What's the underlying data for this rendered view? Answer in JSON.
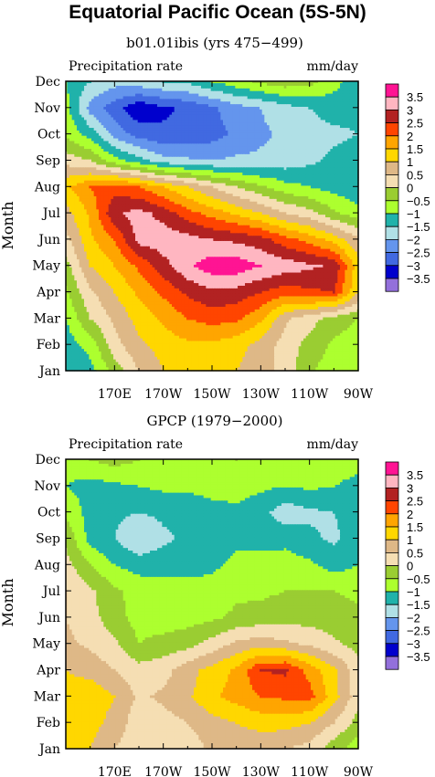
{
  "title": "Equatorial Pacific Ocean (5S-5N)",
  "colorbar_labels": [
    "3.5",
    "3",
    "2.5",
    "2",
    "1.5",
    "1",
    "0.5",
    "0",
    "−0.5",
    "−1",
    "−1.5",
    "−2",
    "−2.5",
    "−3",
    "−3.5"
  ],
  "colorbar_colors": [
    "#ff1493",
    "#ffb6c1",
    "#b22222",
    "#ff4500",
    "#ffa500",
    "#ffd700",
    "#deb887",
    "#f5deb3",
    "#9acd32",
    "#adff2f",
    "#20b2aa",
    "#b0e0e6",
    "#6495ed",
    "#4169e1",
    "#0000cd",
    "#9370db"
  ],
  "chart_data": [
    {
      "type": "heatmap",
      "subtitle": "b01.01ibis (yrs 475−499)",
      "left_label": "Precipitation rate",
      "right_label": "mm/day",
      "ylabel": "Month",
      "xticks": [
        "170E",
        "170W",
        "150W",
        "130W",
        "110W",
        "90W"
      ],
      "yticks": [
        "Jan",
        "Feb",
        "Mar",
        "Apr",
        "May",
        "Jun",
        "Jul",
        "Aug",
        "Sep",
        "Oct",
        "Nov",
        "Dec"
      ],
      "x": [
        150,
        160,
        170,
        180,
        190,
        200,
        210,
        220,
        230,
        240,
        250,
        260,
        270
      ],
      "levels": [
        -4,
        -3.5,
        -3,
        -2.5,
        -2,
        -1.5,
        -1,
        -0.5,
        0,
        0.5,
        1,
        1.5,
        2,
        2.5,
        3,
        3.5,
        4
      ],
      "values": [
        [
          -1.5,
          -1.2,
          -0.3,
          0.5,
          1.0,
          1.2,
          1.2,
          1.0,
          0.7,
          0.3,
          -0.4,
          -0.8,
          -1.0
        ],
        [
          -1.3,
          -0.8,
          0.3,
          0.9,
          1.2,
          1.4,
          1.4,
          1.2,
          0.8,
          0.3,
          -0.2,
          -0.6,
          -0.8
        ],
        [
          -1.0,
          0.0,
          0.6,
          1.2,
          1.6,
          2.0,
          2.2,
          2.1,
          1.6,
          0.6,
          0.2,
          -0.2,
          -0.5
        ],
        [
          -0.6,
          0.4,
          1.0,
          1.6,
          2.1,
          2.6,
          2.9,
          2.8,
          2.5,
          2.2,
          2.4,
          2.5,
          1.0
        ],
        [
          -0.2,
          1.0,
          1.5,
          2.1,
          2.8,
          3.4,
          3.8,
          3.8,
          3.5,
          3.3,
          3.1,
          2.9,
          1.2
        ],
        [
          0.3,
          1.4,
          2.0,
          3.2,
          3.3,
          3.2,
          3.0,
          2.9,
          2.7,
          2.2,
          1.8,
          1.3,
          0.6
        ],
        [
          0.8,
          1.6,
          2.9,
          3.2,
          2.8,
          2.2,
          1.8,
          1.4,
          1.0,
          0.5,
          0.2,
          -0.4,
          -0.8
        ],
        [
          1.4,
          2.0,
          2.3,
          2.0,
          1.5,
          1.0,
          0.5,
          0.0,
          -0.4,
          -0.8,
          -1.0,
          -1.2,
          -1.4
        ],
        [
          0.3,
          0.0,
          -0.8,
          -1.3,
          -1.8,
          -1.9,
          -2.0,
          -1.9,
          -1.9,
          -1.8,
          -1.6,
          -1.4,
          -1.2
        ],
        [
          -0.6,
          -1.2,
          -2.2,
          -2.7,
          -2.9,
          -2.9,
          -2.7,
          -2.4,
          -2.1,
          -1.9,
          -1.7,
          -1.6,
          -1.5
        ],
        [
          -0.8,
          -2.2,
          -2.8,
          -3.4,
          -3.1,
          -2.9,
          -2.6,
          -2.2,
          -2.0,
          -1.7,
          -1.5,
          -1.3,
          -1.4
        ],
        [
          -1.0,
          -1.5,
          -1.8,
          -1.7,
          -1.5,
          -1.4,
          -1.0,
          -0.7,
          -0.4,
          -0.2,
          -0.3,
          -0.8,
          -1.4
        ]
      ]
    },
    {
      "type": "heatmap",
      "subtitle": "GPCP (1979−2000)",
      "left_label": "Precipitation rate",
      "right_label": "mm/day",
      "ylabel": "Month",
      "xticks": [
        "170E",
        "170W",
        "150W",
        "130W",
        "110W",
        "90W"
      ],
      "yticks": [
        "Jan",
        "Feb",
        "Mar",
        "Apr",
        "May",
        "Jun",
        "Jul",
        "Aug",
        "Sep",
        "Oct",
        "Nov",
        "Dec"
      ],
      "x": [
        150,
        160,
        170,
        180,
        190,
        200,
        210,
        220,
        230,
        240,
        250,
        260,
        270
      ],
      "levels": [
        -4,
        -3.5,
        -3,
        -2.5,
        -2,
        -1.5,
        -1,
        -0.5,
        0,
        0.5,
        1,
        1.5,
        2,
        2.5,
        3,
        3.5,
        4
      ],
      "values": [
        [
          1.3,
          1.0,
          0.5,
          0.2,
          0.1,
          0.2,
          0.6,
          0.7,
          0.6,
          0.5,
          0.3,
          -0.3,
          -0.8
        ],
        [
          1.4,
          1.2,
          0.8,
          0.2,
          0.3,
          0.5,
          0.8,
          1.0,
          1.2,
          1.2,
          1.0,
          0.5,
          -0.2
        ],
        [
          1.2,
          1.4,
          1.0,
          0.4,
          0.6,
          0.9,
          1.4,
          1.7,
          2.0,
          2.1,
          2.2,
          1.2,
          0.2
        ],
        [
          1.0,
          0.8,
          0.5,
          0.2,
          0.3,
          0.8,
          1.2,
          1.6,
          2.5,
          2.6,
          1.8,
          1.1,
          0.2
        ],
        [
          0.6,
          0.4,
          0.1,
          -0.5,
          -0.3,
          -0.2,
          0.2,
          0.6,
          0.8,
          0.6,
          0.4,
          0.1,
          -0.2
        ],
        [
          0.5,
          0.2,
          -0.3,
          -0.7,
          -0.8,
          -0.7,
          -0.6,
          -0.4,
          -0.3,
          -0.2,
          -0.2,
          -0.3,
          -0.4
        ],
        [
          0.5,
          0.1,
          -0.4,
          -0.7,
          -0.8,
          -0.8,
          -0.8,
          -0.6,
          -0.6,
          -0.5,
          -0.5,
          -0.5,
          -0.6
        ],
        [
          0.2,
          -0.5,
          -1.0,
          -1.2,
          -1.2,
          -1.2,
          -1.1,
          -0.9,
          -0.8,
          -0.7,
          -0.9,
          -1.2,
          -1.0
        ],
        [
          -0.1,
          -1.2,
          -1.5,
          -2.0,
          -1.6,
          -1.4,
          -1.2,
          -1.1,
          -1.2,
          -1.2,
          -1.4,
          -1.6,
          -1.2
        ],
        [
          -0.6,
          -1.2,
          -1.4,
          -1.5,
          -1.4,
          -1.3,
          -1.2,
          -1.1,
          -1.3,
          -1.8,
          -1.6,
          -1.5,
          -1.3
        ],
        [
          -1.0,
          -1.2,
          -1.1,
          -1.0,
          -0.9,
          -0.9,
          -0.8,
          -0.8,
          -0.9,
          -1.0,
          -0.9,
          -1.0,
          -1.1
        ],
        [
          -0.8,
          -0.5,
          -0.3,
          -0.5,
          -0.7,
          -0.7,
          -0.6,
          -0.5,
          -0.6,
          -0.8,
          -0.9,
          -0.8,
          -0.9
        ]
      ]
    }
  ]
}
